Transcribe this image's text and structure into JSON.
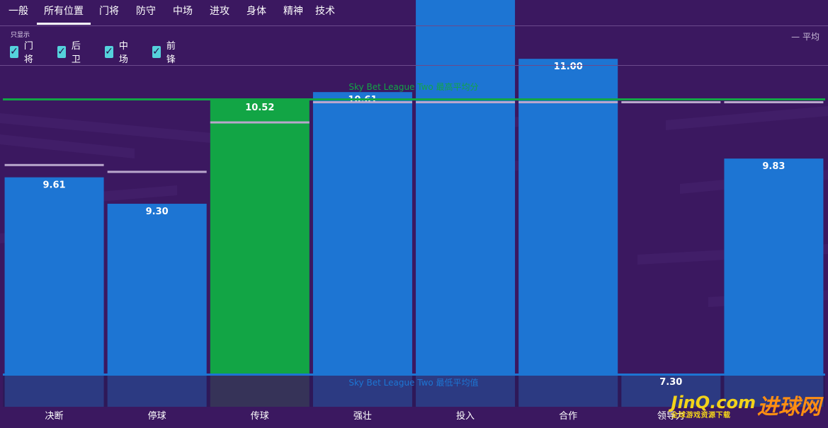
{
  "tabs": [
    {
      "label": "一般",
      "active": false
    },
    {
      "label": "所有位置",
      "active": true
    },
    {
      "label": "门将",
      "active": false
    },
    {
      "label": "防守",
      "active": false
    },
    {
      "label": "中场",
      "active": false
    },
    {
      "label": "进攻",
      "active": false
    },
    {
      "label": "身体",
      "active": false
    },
    {
      "label": "精神",
      "active": false
    },
    {
      "label": "技术",
      "active": false
    }
  ],
  "filter": {
    "label": "只显示",
    "options": [
      {
        "label": "门将",
        "checked": true
      },
      {
        "label": "后卫",
        "checked": true
      },
      {
        "label": "中场",
        "checked": true
      },
      {
        "label": "前锋",
        "checked": true
      }
    ]
  },
  "legend": {
    "average_label": "— 平均"
  },
  "colors": {
    "background": "#3b1860",
    "bar": "#1d75d3",
    "bar_highlight": "#12a545",
    "max_line": "#12a545",
    "min_line": "#1d75d3",
    "average_marker": "#b9a7cc",
    "check": "#55d2dc"
  },
  "chart_data": {
    "type": "bar",
    "categories": [
      "决断",
      "停球",
      "传球",
      "强壮",
      "投入",
      "合作",
      "领导力",
      ""
    ],
    "values": [
      9.61,
      9.3,
      10.52,
      10.61,
      11.91,
      11.0,
      7.3,
      9.83
    ],
    "averages": [
      9.75,
      9.67,
      10.25,
      10.7,
      11.95,
      11.18,
      11.95,
      12.0
    ],
    "highlighted_index": 2,
    "max_line": {
      "label": "Sky Bet League Two 最高平均分",
      "value": 10.52
    },
    "min_line": {
      "label": "Sky Bet League Two 最低平均值",
      "value": 7.3
    },
    "show_grid": false
  },
  "watermark": {
    "main": "JinQ.com",
    "sub": "全球游戏资源下载",
    "big": "进球网"
  }
}
